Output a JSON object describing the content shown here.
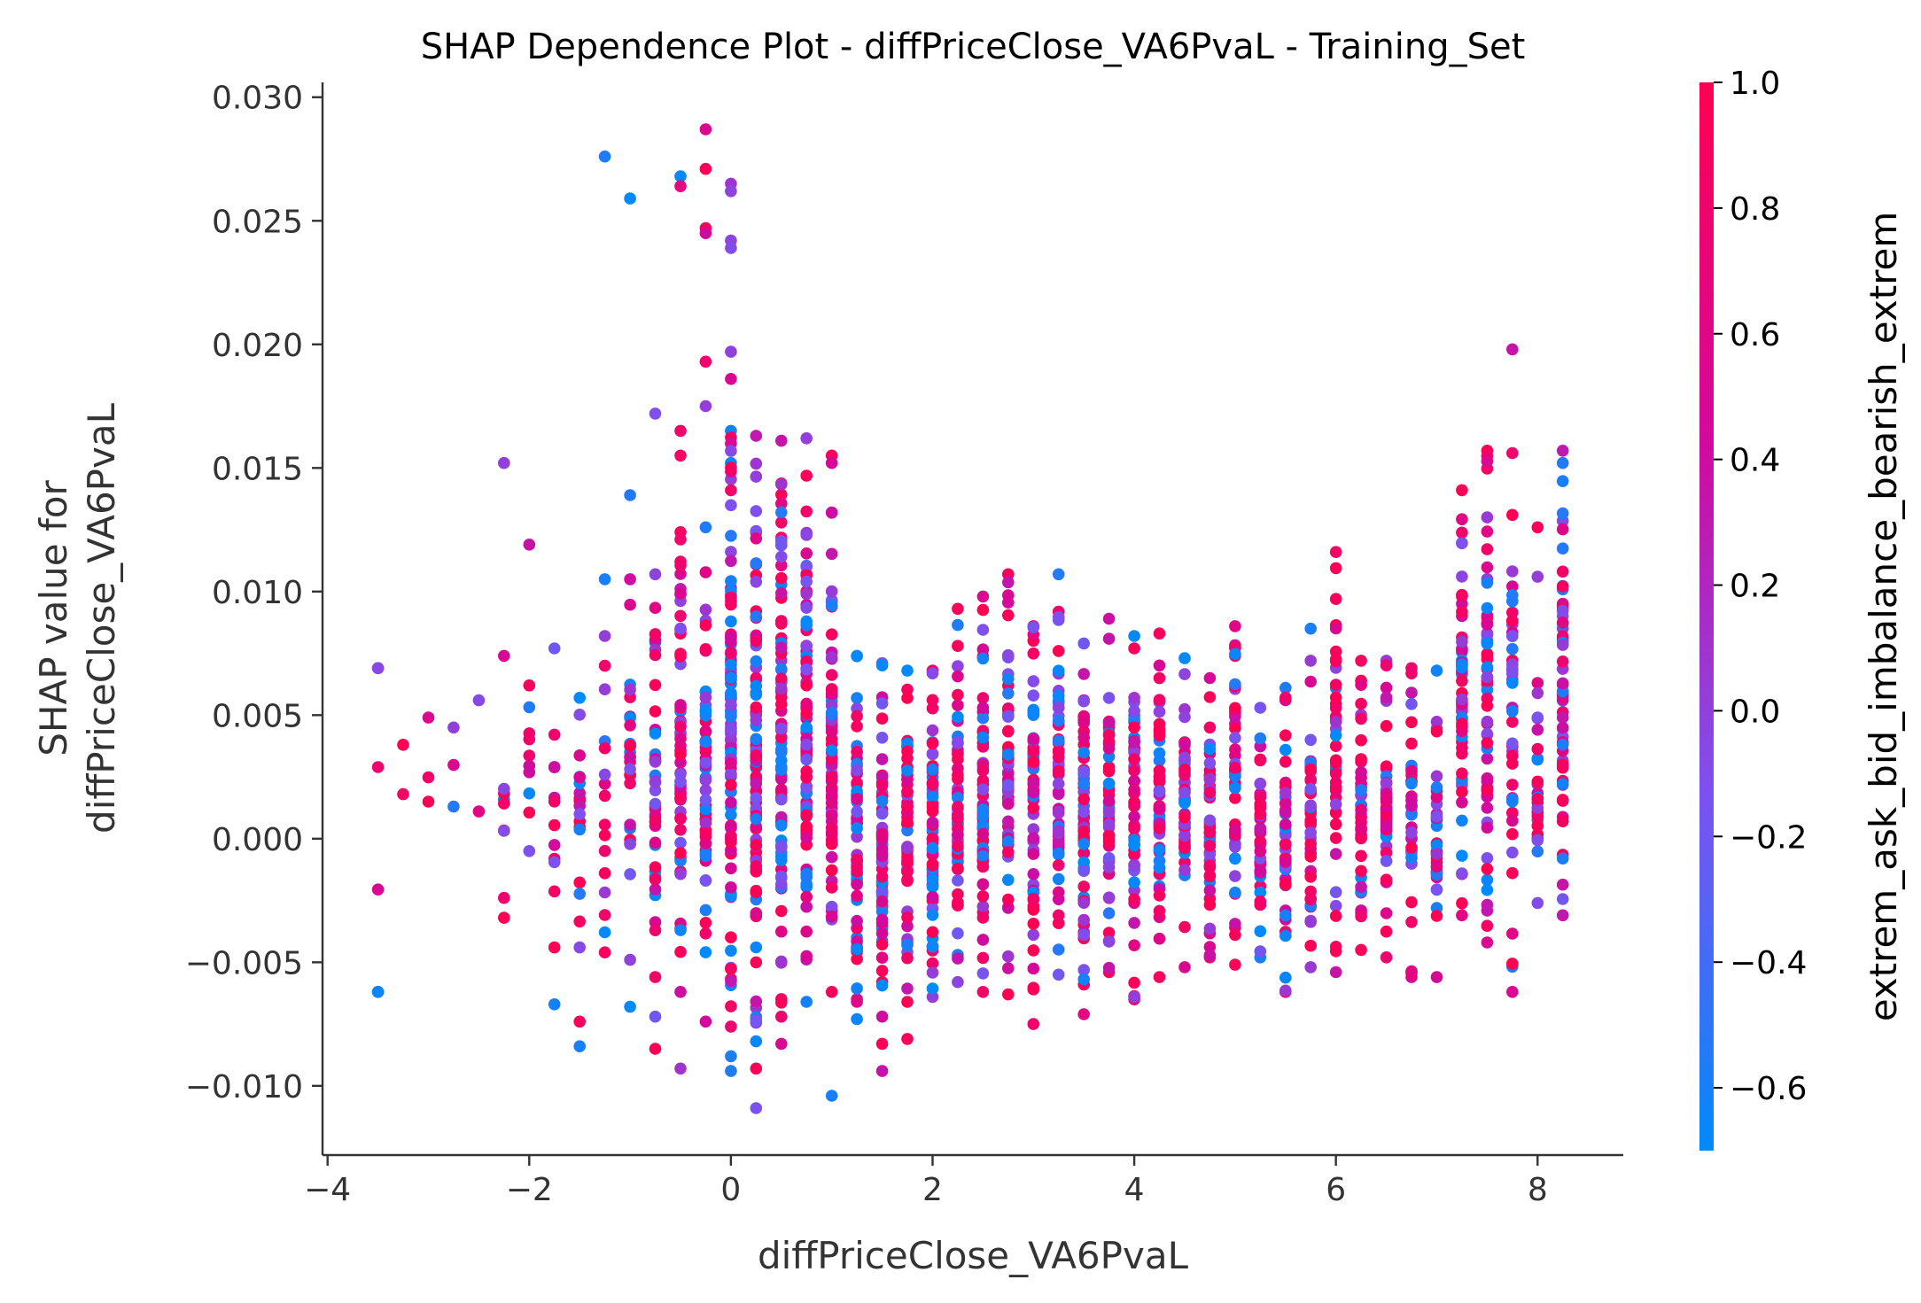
{
  "chart_data": {
    "type": "scatter",
    "title": "SHAP Dependence Plot - diffPriceClose_VA6PvaL - Training_Set",
    "xlabel": "diffPriceClose_VA6PvaL",
    "ylabel_lines": [
      "SHAP value for",
      "diffPriceClose_VA6PvaL"
    ],
    "xlim": [
      -4.05,
      8.85
    ],
    "ylim": [
      -0.0128,
      0.0306
    ],
    "x_ticks": [
      -4,
      -2,
      0,
      2,
      4,
      6,
      8
    ],
    "x_tick_labels": [
      "−4",
      "−2",
      "0",
      "2",
      "4",
      "6",
      "8"
    ],
    "y_ticks": [
      0.03,
      0.025,
      0.02,
      0.015,
      0.01,
      0.005,
      0.0,
      -0.005,
      -0.01
    ],
    "y_tick_labels": [
      "0.030",
      "0.025",
      "0.020",
      "0.015",
      "0.010",
      "0.005",
      "0.000",
      "−0.005",
      "−0.010"
    ],
    "grid": false,
    "colorbar": {
      "label": "extrem_ask_bid_imbalance_bearish_extrem",
      "range": [
        -0.7,
        1.0
      ],
      "ticks": [
        1.0,
        0.8,
        0.6,
        0.4,
        0.2,
        0.0,
        -0.2,
        -0.4,
        -0.6
      ],
      "tick_labels": [
        "1.0",
        "0.8",
        "0.6",
        "0.4",
        "0.2",
        "0.0",
        "−0.2",
        "−0.4",
        "−0.6"
      ],
      "colormap": [
        "#008afb",
        "#7c52f0",
        "#d10a9e",
        "#ff0052"
      ]
    },
    "columns": [
      {
        "x": -3.5,
        "lo": -0.0062,
        "hi": 0.0069,
        "n": 4,
        "extra": [
          -0.0062,
          0.0069
        ]
      },
      {
        "x": -3.25,
        "lo": 0.0018,
        "hi": 0.0038,
        "n": 2,
        "extra": []
      },
      {
        "x": -3.0,
        "lo": 0.0015,
        "hi": 0.0049,
        "n": 3,
        "extra": []
      },
      {
        "x": -2.75,
        "lo": 0.0013,
        "hi": 0.0045,
        "n": 3,
        "extra": []
      },
      {
        "x": -2.5,
        "lo": 0.0011,
        "hi": 0.0056,
        "n": 2,
        "extra": []
      },
      {
        "x": -2.25,
        "lo": -0.0032,
        "hi": 0.0074,
        "n": 9,
        "extra": [
          0.0152
        ]
      },
      {
        "x": -2.0,
        "lo": -0.0005,
        "hi": 0.0062,
        "n": 10,
        "extra": [
          0.0119
        ]
      },
      {
        "x": -1.75,
        "lo": -0.0044,
        "hi": 0.0077,
        "n": 12,
        "extra": [
          -0.0067
        ]
      },
      {
        "x": -1.5,
        "lo": -0.0044,
        "hi": 0.0057,
        "n": 18,
        "extra": [
          -0.0074,
          -0.0084
        ]
      },
      {
        "x": -1.25,
        "lo": -0.0046,
        "hi": 0.0082,
        "n": 16,
        "extra": [
          0.0105,
          0.0276
        ]
      },
      {
        "x": -1.0,
        "lo": -0.0049,
        "hi": 0.0105,
        "n": 26,
        "extra": [
          0.0139,
          -0.0068,
          0.0259
        ]
      },
      {
        "x": -0.75,
        "lo": -0.0056,
        "hi": 0.0107,
        "n": 40,
        "extra": [
          0.0172,
          -0.0072,
          -0.0085
        ]
      },
      {
        "x": -0.5,
        "lo": -0.0062,
        "hi": 0.0124,
        "n": 55,
        "extra": [
          0.0165,
          0.0155,
          0.0268,
          0.0264,
          -0.0093
        ]
      },
      {
        "x": -0.25,
        "lo": -0.0074,
        "hi": 0.0126,
        "n": 55,
        "extra": [
          0.0175,
          0.0193,
          0.0247,
          0.0271,
          0.0287,
          0.0245
        ]
      },
      {
        "x": 0.0,
        "lo": -0.0076,
        "hi": 0.0165,
        "n": 110,
        "extra": [
          0.0197,
          0.0186,
          0.0265,
          0.0262,
          0.0242,
          0.0239,
          -0.0088,
          -0.0094
        ]
      },
      {
        "x": 0.25,
        "lo": -0.0082,
        "hi": 0.0163,
        "n": 90,
        "extra": [
          -0.0093,
          -0.0109
        ]
      },
      {
        "x": 0.5,
        "lo": -0.0072,
        "hi": 0.0161,
        "n": 85,
        "extra": [
          -0.0083
        ]
      },
      {
        "x": 0.75,
        "lo": -0.0066,
        "hi": 0.0162,
        "n": 85,
        "extra": []
      },
      {
        "x": 1.0,
        "lo": -0.0062,
        "hi": 0.0132,
        "n": 70,
        "extra": [
          0.0155,
          0.0152,
          -0.0104
        ]
      },
      {
        "x": 1.25,
        "lo": -0.0066,
        "hi": 0.0074,
        "n": 60,
        "extra": [
          -0.0073
        ]
      },
      {
        "x": 1.5,
        "lo": -0.0072,
        "hi": 0.0071,
        "n": 60,
        "extra": [
          -0.0083,
          -0.0094
        ]
      },
      {
        "x": 1.75,
        "lo": -0.0066,
        "hi": 0.0068,
        "n": 60,
        "extra": [
          -0.0081
        ]
      },
      {
        "x": 2.0,
        "lo": -0.0064,
        "hi": 0.0068,
        "n": 60,
        "extra": []
      },
      {
        "x": 2.25,
        "lo": -0.0058,
        "hi": 0.0093,
        "n": 60,
        "extra": []
      },
      {
        "x": 2.5,
        "lo": -0.0062,
        "hi": 0.0098,
        "n": 60,
        "extra": []
      },
      {
        "x": 2.75,
        "lo": -0.0063,
        "hi": 0.0107,
        "n": 60,
        "extra": []
      },
      {
        "x": 3.0,
        "lo": -0.0061,
        "hi": 0.0086,
        "n": 60,
        "extra": [
          -0.0075
        ]
      },
      {
        "x": 3.25,
        "lo": -0.0055,
        "hi": 0.0107,
        "n": 60,
        "extra": []
      },
      {
        "x": 3.5,
        "lo": -0.0059,
        "hi": 0.0079,
        "n": 55,
        "extra": [
          -0.0071
        ]
      },
      {
        "x": 3.75,
        "lo": -0.0054,
        "hi": 0.0089,
        "n": 55,
        "extra": []
      },
      {
        "x": 4.0,
        "lo": -0.0065,
        "hi": 0.0082,
        "n": 55,
        "extra": []
      },
      {
        "x": 4.25,
        "lo": -0.0056,
        "hi": 0.0083,
        "n": 55,
        "extra": []
      },
      {
        "x": 4.5,
        "lo": -0.0052,
        "hi": 0.0073,
        "n": 50,
        "extra": []
      },
      {
        "x": 4.75,
        "lo": -0.0048,
        "hi": 0.0065,
        "n": 50,
        "extra": []
      },
      {
        "x": 5.0,
        "lo": -0.0051,
        "hi": 0.0086,
        "n": 50,
        "extra": []
      },
      {
        "x": 5.25,
        "lo": -0.0048,
        "hi": 0.0053,
        "n": 45,
        "extra": []
      },
      {
        "x": 5.5,
        "lo": -0.0062,
        "hi": 0.0061,
        "n": 45,
        "extra": []
      },
      {
        "x": 5.75,
        "lo": -0.0052,
        "hi": 0.0072,
        "n": 45,
        "extra": [
          0.0085
        ]
      },
      {
        "x": 6.0,
        "lo": -0.0054,
        "hi": 0.0116,
        "n": 45,
        "extra": [
          0.0097
        ]
      },
      {
        "x": 6.25,
        "lo": -0.0045,
        "hi": 0.0072,
        "n": 40,
        "extra": []
      },
      {
        "x": 6.5,
        "lo": -0.0048,
        "hi": 0.0072,
        "n": 40,
        "extra": []
      },
      {
        "x": 6.75,
        "lo": -0.0056,
        "hi": 0.0069,
        "n": 35,
        "extra": []
      },
      {
        "x": 7.0,
        "lo": -0.0056,
        "hi": 0.0068,
        "n": 35,
        "extra": []
      },
      {
        "x": 7.25,
        "lo": -0.0031,
        "hi": 0.0141,
        "n": 55,
        "extra": []
      },
      {
        "x": 7.5,
        "lo": -0.0042,
        "hi": 0.0157,
        "n": 60,
        "extra": []
      },
      {
        "x": 7.75,
        "lo": -0.0062,
        "hi": 0.0156,
        "n": 40,
        "extra": [
          0.0198,
          0.0131
        ]
      },
      {
        "x": 8.0,
        "lo": -0.0026,
        "hi": 0.0063,
        "n": 25,
        "extra": [
          0.0126,
          0.0106
        ]
      },
      {
        "x": 8.25,
        "lo": -0.0031,
        "hi": 0.0157,
        "n": 60,
        "extra": []
      }
    ]
  }
}
